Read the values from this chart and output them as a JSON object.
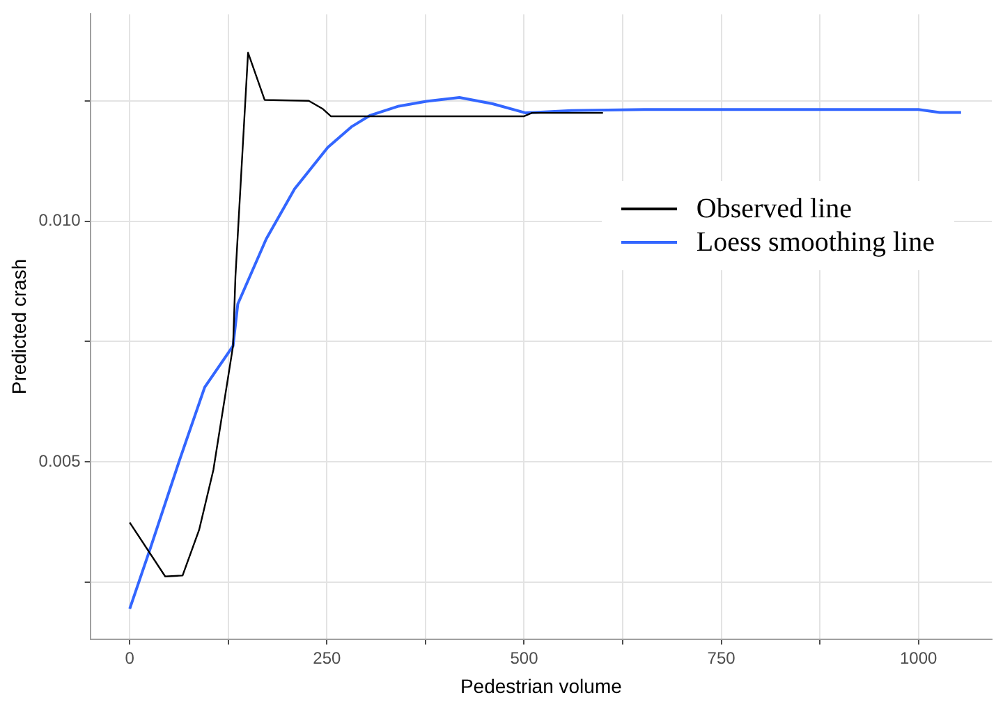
{
  "chart_data": {
    "type": "line",
    "xlabel": "Pedestrian volume",
    "ylabel": "Predicted crash",
    "xlim": [
      -50,
      1093
    ],
    "ylim": [
      0.00132,
      0.0143
    ],
    "xticks": [
      0,
      {
        "value": 125,
        "label": null
      },
      250,
      {
        "value": 375,
        "label": null
      },
      500,
      {
        "value": 625,
        "label": null
      },
      750,
      {
        "value": 875,
        "label": null
      },
      1000
    ],
    "yticks": [
      {
        "value": 0.0025,
        "label": null
      },
      {
        "value": 0.005,
        "label": "0.005"
      },
      {
        "value": 0.0075,
        "label": null
      },
      {
        "value": 0.01,
        "label": "0.010"
      },
      {
        "value": 0.0125,
        "label": null
      }
    ],
    "grid": true,
    "legend": "top right",
    "series": [
      {
        "name": "Observed line",
        "color": "#000000",
        "x": [
          0,
          45,
          67,
          88,
          106,
          131,
          134,
          150,
          171,
          227,
          245,
          255,
          500,
          510,
          600
        ],
        "values": [
          0.00374,
          0.00262,
          0.00264,
          0.00359,
          0.00483,
          0.00741,
          0.00885,
          0.0135,
          0.01252,
          0.0125,
          0.01233,
          0.01218,
          0.01218,
          0.01225,
          0.01225
        ]
      },
      {
        "name": "Loess smoothing line",
        "color": "#3366ff",
        "x": [
          0,
          26,
          63,
          95,
          131,
          137,
          173,
          209,
          251,
          281,
          305,
          341,
          376,
          418,
          460,
          502,
          560,
          652,
          800,
          1000,
          1027,
          1054
        ],
        "values": [
          0.00195,
          0.0032,
          0.00503,
          0.00655,
          0.00741,
          0.00828,
          0.00963,
          0.01067,
          0.01153,
          0.01196,
          0.0122,
          0.01239,
          0.01249,
          0.01257,
          0.01244,
          0.01225,
          0.0123,
          0.01232,
          0.01232,
          0.01232,
          0.01226,
          0.01226
        ]
      }
    ]
  }
}
